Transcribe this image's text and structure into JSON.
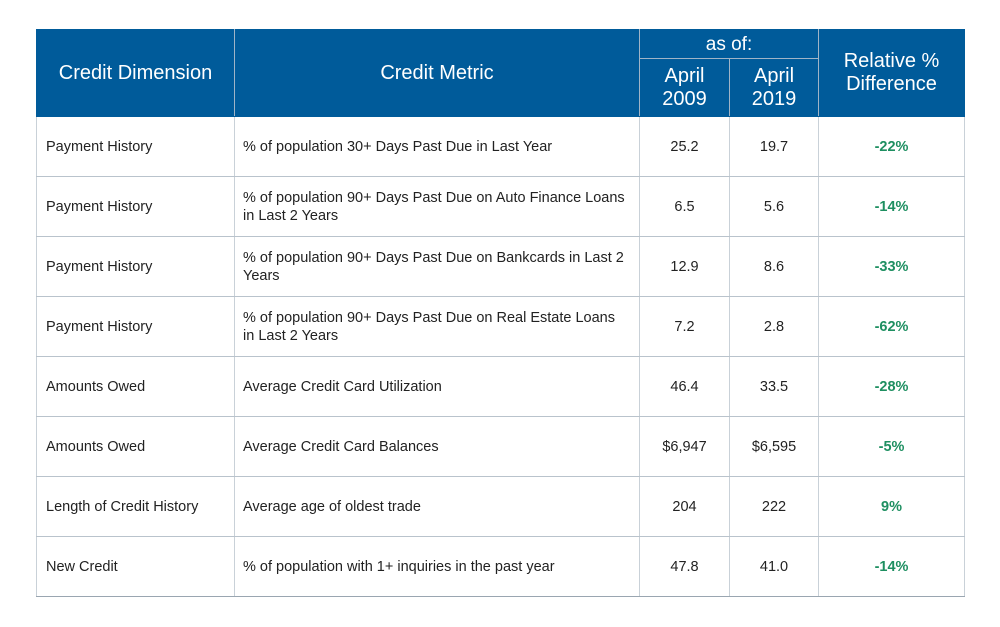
{
  "header": {
    "credit_dimension": "Credit Dimension",
    "credit_metric": "Credit Metric",
    "as_of": "as of:",
    "col_2009_line1": "April",
    "col_2009_line2": "2009",
    "col_2019_line1": "April",
    "col_2019_line2": "2019",
    "relative_line1": "Relative %",
    "relative_line2": "Difference"
  },
  "rows": [
    {
      "dimension": "Payment History",
      "metric": "% of population 30+ Days Past Due in Last Year",
      "april_2009": "25.2",
      "april_2019": "19.7",
      "relative": "-22%"
    },
    {
      "dimension": "Payment History",
      "metric": "% of population 90+ Days Past Due on Auto Finance Loans in Last 2 Years",
      "april_2009": "6.5",
      "april_2019": "5.6",
      "relative": "-14%"
    },
    {
      "dimension": "Payment History",
      "metric": "% of population 90+ Days Past Due on Bankcards in Last 2 Years",
      "april_2009": "12.9",
      "april_2019": "8.6",
      "relative": "-33%"
    },
    {
      "dimension": "Payment History",
      "metric": "% of population 90+ Days Past Due on Real Estate Loans in Last 2 Years",
      "april_2009": "7.2",
      "april_2019": "2.8",
      "relative": "-62%"
    },
    {
      "dimension": "Amounts Owed",
      "metric": "Average Credit Card Utilization",
      "april_2009": "46.4",
      "april_2019": "33.5",
      "relative": "-28%"
    },
    {
      "dimension": "Amounts Owed",
      "metric": "Average Credit Card Balances",
      "april_2009": "$6,947",
      "april_2019": "$6,595",
      "relative": "-5%"
    },
    {
      "dimension": "Length of Credit History",
      "metric": "Average age of oldest trade",
      "april_2009": "204",
      "april_2019": "222",
      "relative": "9%"
    },
    {
      "dimension": "New Credit",
      "metric": "% of population with 1+ inquiries in the past year",
      "april_2009": "47.8",
      "april_2019": "41.0",
      "relative": "-14%"
    }
  ],
  "colors": {
    "header_bg": "#005b9a",
    "header_text": "#ffffff",
    "relative_text": "#1e8f61",
    "body_text": "#222222"
  }
}
